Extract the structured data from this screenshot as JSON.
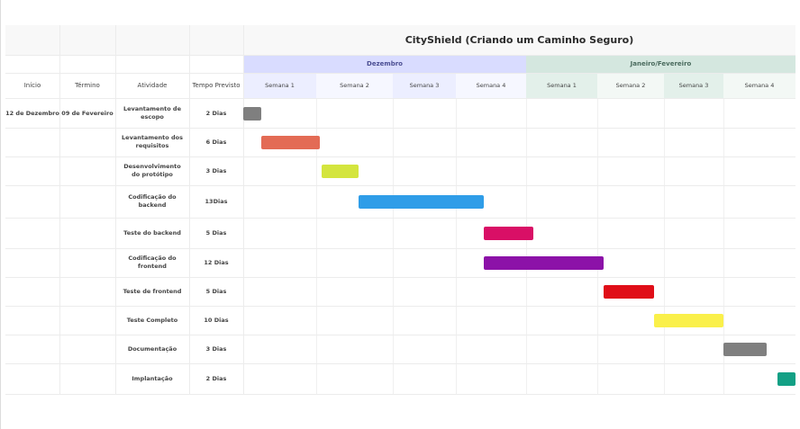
{
  "header": {
    "title": "CityShield (Criando um Caminho Seguro)",
    "col_inicio": "Início",
    "col_termino": "Término",
    "col_atividade": "Atividade",
    "col_tempo": "Tempo Previsto",
    "inicio_value": "12 de Dezembro",
    "termino_value": "09 de Fevereiro"
  },
  "chart_data": {
    "type": "gantt",
    "title": "CityShield (Criando um Caminho Seguro)",
    "months": [
      {
        "label": "Dezembro",
        "color": "#d9dcff"
      },
      {
        "label": "Janeiro/Fevereiro",
        "color": "#d4e7df"
      }
    ],
    "weeks": [
      "Semana 1",
      "Semana 2",
      "Semana 3",
      "Semana 4",
      "Semana 1",
      "Semana 2",
      "Semana 3",
      "Semana 4"
    ],
    "tasks": [
      {
        "name": "Levantamento de escopo",
        "duration": "2 Dias",
        "start_week": 0.0,
        "end_week": 0.25,
        "color": "#7f7f7f"
      },
      {
        "name": "Levantamento dos requisitos",
        "duration": "6 Dias",
        "start_week": 0.25,
        "end_week": 1.05,
        "color": "#e36b55"
      },
      {
        "name": "Desenvolvimento do protótipo",
        "duration": "3 Dias",
        "start_week": 1.07,
        "end_week": 1.55,
        "color": "#d4e53e"
      },
      {
        "name": "Codificação do backend",
        "duration": "13Dias",
        "start_week": 1.55,
        "end_week": 3.4,
        "color": "#2f9de8"
      },
      {
        "name": "Teste do backend",
        "duration": "5 Dias",
        "start_week": 3.4,
        "end_week": 4.1,
        "color": "#d90f66"
      },
      {
        "name": "Codificação do frontend",
        "duration": "12 Dias",
        "start_week": 3.4,
        "end_week": 5.1,
        "color": "#8c12a8"
      },
      {
        "name": "Teste de frontend",
        "duration": "5 Dias",
        "start_week": 5.1,
        "end_week": 5.85,
        "color": "#e00e18"
      },
      {
        "name": "Teste Completo",
        "duration": "10 Dias",
        "start_week": 5.85,
        "end_week": 7.0,
        "color": "#faf04a"
      },
      {
        "name": "Documentação",
        "duration": "3 Dias",
        "start_week": 7.0,
        "end_week": 7.6,
        "color": "#7f7f7f"
      },
      {
        "name": "Implantação",
        "duration": "2 Dias",
        "start_week": 7.75,
        "end_week": 8.0,
        "color": "#13a085"
      }
    ]
  }
}
